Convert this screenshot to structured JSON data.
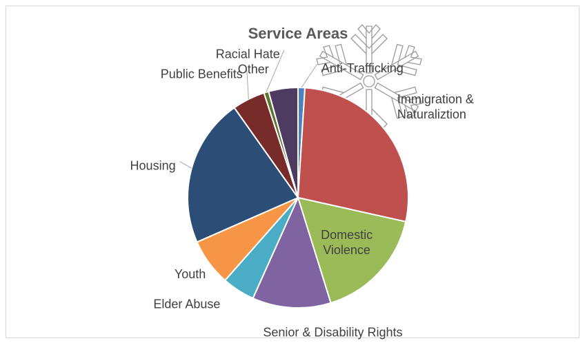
{
  "chart_data": {
    "type": "pie",
    "title": "Service Areas",
    "categories": [
      "Anti-Trafficking",
      "Immigration & Naturaliztion",
      "Domestic Violence",
      "Senior & Disability Rights",
      "Elder Abuse",
      "Youth",
      "Housing",
      "Public Benefits",
      "Racial Hate",
      "Other"
    ],
    "values": [
      1.0,
      27.5,
      16.7,
      11.5,
      4.8,
      6.9,
      21.8,
      4.8,
      0.7,
      4.3
    ],
    "colors": [
      "#4f81bd",
      "#c0504d",
      "#9bbb59",
      "#8064a2",
      "#4bacc6",
      "#f79646",
      "#2c4d75",
      "#772c2a",
      "#5f7530",
      "#4d3b62"
    ],
    "legend": "none",
    "label_lines": [
      [
        "Anti-Trafficking"
      ],
      [
        "Immigration &",
        "Naturaliztion"
      ],
      [
        "Domestic",
        "Violence"
      ],
      [
        "Senior & Disability Rights"
      ],
      [
        "Elder Abuse"
      ],
      [
        "Youth"
      ],
      [
        "Housing"
      ],
      [
        "Public Benefits"
      ],
      [
        "Racial Hate"
      ],
      [
        "Other"
      ]
    ]
  }
}
